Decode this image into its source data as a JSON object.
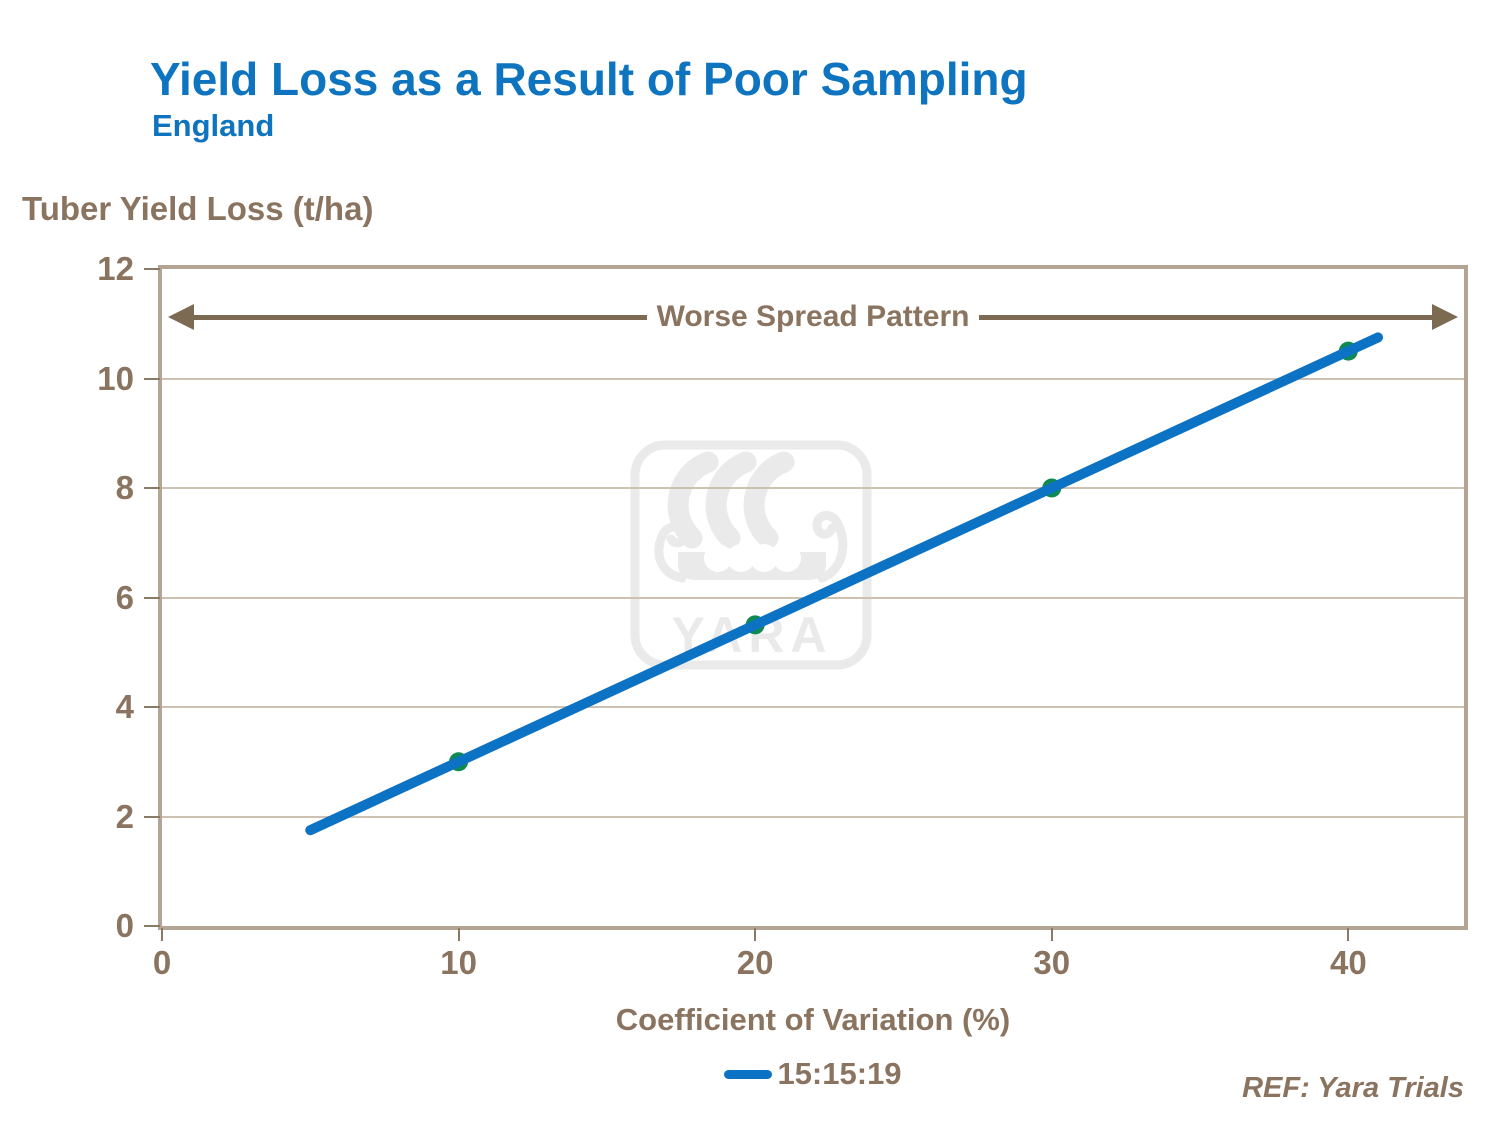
{
  "colors": {
    "title_blue": "#0e74bf",
    "text_brown": "#8a7460",
    "arrow_brown": "#7c6a52",
    "axis_border": "#b3a494",
    "tick_color": "#8a7a66",
    "gridline": "#cdc2b2",
    "line_blue": "#0b72c4",
    "marker_green": "#0f8a52",
    "watermark_gray": "#eaeaea"
  },
  "chart_data": {
    "type": "line",
    "title": "Yield Loss as a Result of Poor Sampling",
    "subtitle": "England",
    "ylabel": "Tuber Yield Loss (t/ha)",
    "xlabel": "Coefficient of Variation (%)",
    "annotation": "Worse Spread Pattern",
    "watermark": "YARA",
    "ref": "REF: Yara Trials",
    "xlim": [
      0,
      43.9
    ],
    "ylim": [
      0,
      12
    ],
    "xticks": [
      0,
      10,
      20,
      30,
      40
    ],
    "yticks": [
      0,
      2,
      4,
      6,
      8,
      10,
      12
    ],
    "grid": "horizontal gridlines at every y tick",
    "legend_position": "bottom center",
    "series": [
      {
        "name": "15:15:19",
        "x": [
          5,
          10,
          20,
          30,
          40,
          41
        ],
        "y": [
          1.75,
          3,
          5.5,
          8,
          10.5,
          10.75
        ],
        "marker_x": [
          10,
          20,
          30,
          40
        ],
        "marker_y": [
          3,
          5.5,
          8,
          10.5
        ]
      }
    ]
  }
}
